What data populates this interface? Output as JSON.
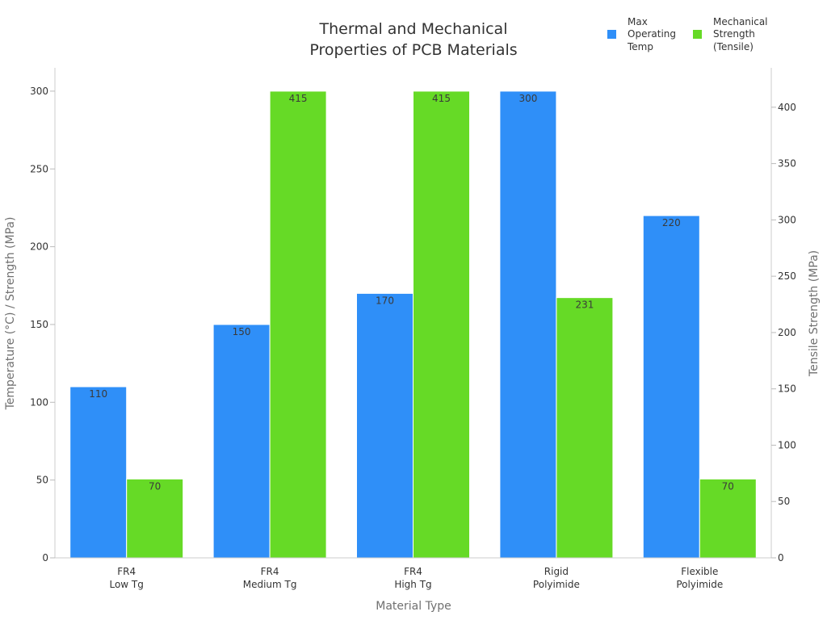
{
  "chart_data": {
    "type": "bar",
    "title_lines": [
      "Thermal and Mechanical",
      "Properties of PCB Materials"
    ],
    "xlabel": "Material Type",
    "ylabel": "Temperature (°C) / Strength (MPa)",
    "y2label": "Tensile Strength (MPa)",
    "categories": [
      [
        "FR4",
        "Low Tg"
      ],
      [
        "FR4",
        "Medium Tg"
      ],
      [
        "FR4",
        "High Tg"
      ],
      [
        "Rigid",
        "Polyimide"
      ],
      [
        "Flexible",
        "Polyimide"
      ]
    ],
    "ylim": [
      0,
      315
    ],
    "yticks": [
      0,
      50,
      100,
      150,
      200,
      250,
      300
    ],
    "y2lim": [
      0,
      435
    ],
    "y2ticks": [
      0,
      50,
      100,
      150,
      200,
      250,
      300,
      350,
      400
    ],
    "series": [
      {
        "name_lines": [
          "Max",
          "Operating",
          "Temp"
        ],
        "axis": "left",
        "color": "#2f8ff8",
        "values": [
          110,
          150,
          170,
          300,
          220
        ],
        "labels": [
          "110",
          "150",
          "170",
          "300",
          "220"
        ]
      },
      {
        "name_lines": [
          "Mechanical",
          "Strength",
          "(Tensile)"
        ],
        "axis": "right",
        "color": "#66da26",
        "values": [
          70,
          415,
          415,
          231,
          70
        ],
        "labels": [
          "70",
          "415",
          "415",
          "231",
          "70"
        ]
      }
    ],
    "clip_to_plot": true,
    "legend_position": "top-right",
    "grid": false
  }
}
